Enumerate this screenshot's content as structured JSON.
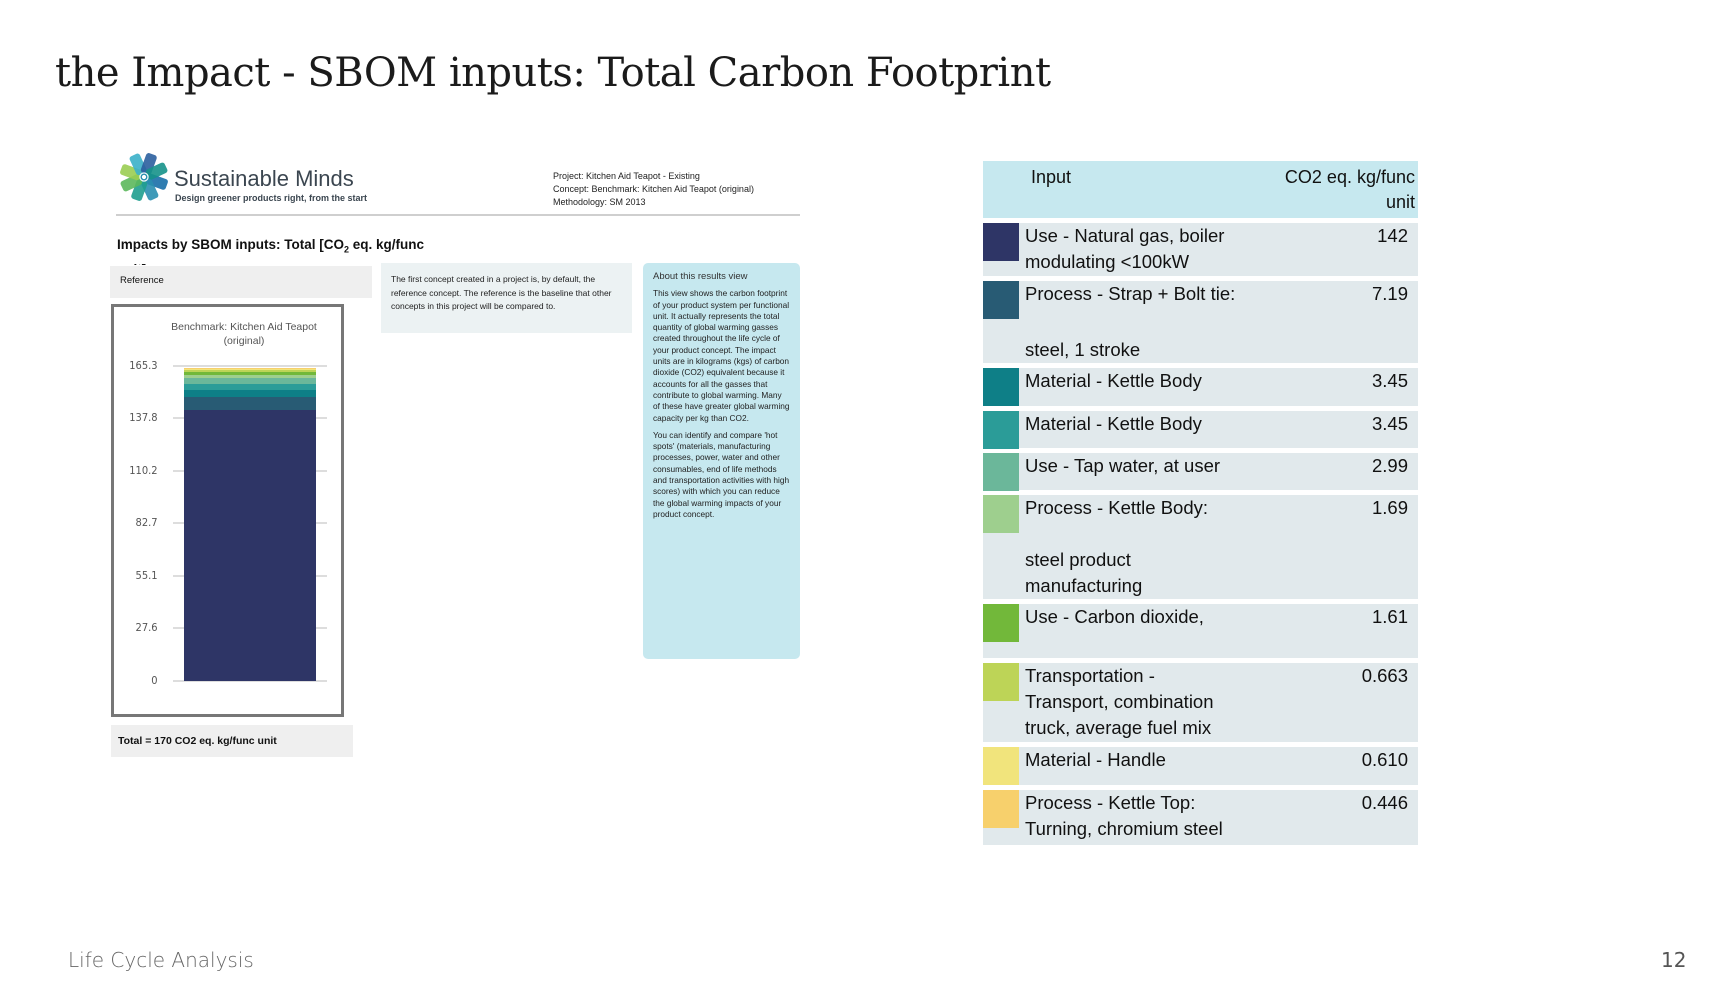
{
  "slide": {
    "title": "the Impact - SBOM inputs: Total Carbon Footprint",
    "footer": "Life Cycle Analysis",
    "page_number": "12"
  },
  "report": {
    "brand": "Sustainable Minds",
    "tagline": "Design greener products right, from the start",
    "project": "Project: Kitchen Aid Teapot - Existing",
    "concept": "Concept: Benchmark: Kitchen Aid Teapot (original)",
    "methodology": "Methodology: SM 2013",
    "heading_pre": "Impacts by SBOM inputs: Total [CO",
    "heading_sub": "2",
    "heading_post": " eq. kg/func unit]",
    "reference_label": "Reference",
    "concept_note": "The first concept created in a project is, by default, the reference concept. The reference is the baseline that other concepts in this project will be compared to.",
    "about_title": "About this results view",
    "about_p1": "This view shows the carbon footprint of your product system per functional unit. It actually represents the total quantity of global warming gasses created throughout the life cycle of your product concept. The impact units are in kilograms (kgs) of carbon dioxide (CO2) equivalent because it accounts for all the gasses that contribute to global warming. Many of these have greater global warming capacity per kg than CO2.",
    "about_p2": "You can identify and compare 'hot spots' (materials, manufacturing processes, power, water and other consumables, end of life methods and transportation activities with high scores) with which you can reduce the global warming impacts of your product concept.",
    "total": "Total = 170 CO2 eq. kg/func unit"
  },
  "chart_data": {
    "type": "bar",
    "stacked": true,
    "title": "Benchmark: Kitchen Aid Teapot (original)",
    "categories": [
      "Benchmark: Kitchen Aid Teapot (original)"
    ],
    "ylim": [
      0,
      165.3
    ],
    "yticks": [
      "0",
      "27.6",
      "55.1",
      "82.7",
      "110.2",
      "137.8",
      "165.3"
    ],
    "grid": true,
    "series": [
      {
        "name": "Use - Natural gas, boiler modulating <100kW",
        "values": [
          142
        ],
        "color": "#2e3566"
      },
      {
        "name": "Process - Strap + Bolt tie: steel, 1 stroke",
        "values": [
          7.19
        ],
        "color": "#285b74"
      },
      {
        "name": "Material - Kettle Body",
        "values": [
          3.45
        ],
        "color": "#0e7f87"
      },
      {
        "name": "Material - Kettle Body",
        "values": [
          3.45
        ],
        "color": "#2b9c98"
      },
      {
        "name": "Use - Tap water, at user",
        "values": [
          2.99
        ],
        "color": "#6bb79a"
      },
      {
        "name": "Process - Kettle Body: steel product manufacturing",
        "values": [
          1.69
        ],
        "color": "#9ecf8e"
      },
      {
        "name": "Use - Carbon dioxide,",
        "values": [
          1.61
        ],
        "color": "#72b83a"
      },
      {
        "name": "Transportation - Transport, combination truck, average fuel mix",
        "values": [
          0.663
        ],
        "color": "#bdd457"
      },
      {
        "name": "Material - Handle",
        "values": [
          0.61
        ],
        "color": "#f1e47c"
      },
      {
        "name": "Process - Kettle Top: Turning, chromium steel",
        "values": [
          0.446
        ],
        "color": "#f7d06c"
      }
    ]
  },
  "table": {
    "headers": {
      "input": "Input",
      "value": "CO2 eq. kg/func unit"
    },
    "rows": [
      {
        "top": [
          "Use - Natural gas, boiler",
          "modulating <100kW"
        ],
        "bottom": [],
        "value": "142",
        "color": "#2e3566"
      },
      {
        "top": [
          "Process - Strap + Bolt tie:"
        ],
        "bottom": [
          "steel, 1 stroke"
        ],
        "value": "7.19",
        "color": "#285b74"
      },
      {
        "top": [
          "Material - Kettle Body"
        ],
        "bottom": [],
        "value": "3.45",
        "color": "#0e7f87"
      },
      {
        "top": [
          "Material - Kettle Body"
        ],
        "bottom": [],
        "value": "3.45",
        "color": "#2b9c98"
      },
      {
        "top": [
          "Use - Tap water, at user"
        ],
        "bottom": [],
        "value": "2.99",
        "color": "#6bb79a"
      },
      {
        "top": [
          "Process - Kettle Body:"
        ],
        "bottom": [
          "steel product",
          "manufacturing"
        ],
        "value": "1.69",
        "color": "#9ecf8e"
      },
      {
        "top": [
          "Use - Carbon dioxide,"
        ],
        "bottom": [],
        "value": "1.61",
        "color": "#72b83a"
      },
      {
        "top": [
          "Transportation -",
          "Transport, combination",
          "truck, average fuel mix"
        ],
        "bottom": [],
        "value": "0.663",
        "color": "#bdd457"
      },
      {
        "top": [
          "Material - Handle"
        ],
        "bottom": [],
        "value": "0.610",
        "color": "#f1e47c"
      },
      {
        "top": [
          "Process - Kettle Top:",
          "Turning, chromium steel"
        ],
        "bottom": [],
        "value": "0.446",
        "color": "#f7d06c"
      }
    ]
  }
}
